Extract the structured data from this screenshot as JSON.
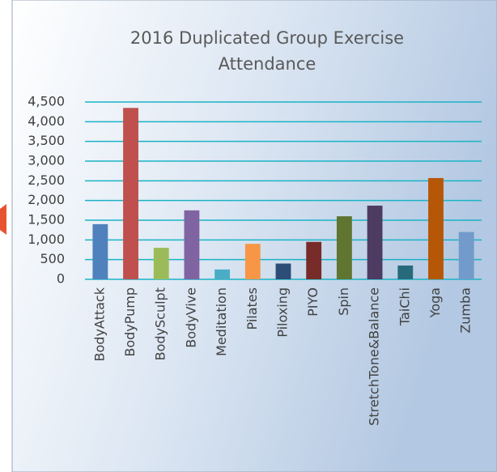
{
  "chart_data": {
    "type": "bar",
    "title": "2016 Duplicated Group Exercise Attendance",
    "categories": [
      "BodyAttack",
      "BodyPump",
      "BodySculpt",
      "BodyVive",
      "Meditation",
      "Pilates",
      "Piloxing",
      "PIYO",
      "Spin",
      "StretchTone&Balance",
      "TaiChi",
      "Yoga",
      "Zumba"
    ],
    "values": [
      1400,
      4350,
      800,
      1750,
      250,
      900,
      400,
      950,
      1600,
      1870,
      350,
      2570,
      1200
    ],
    "colors": [
      "#4f81bd",
      "#c0504d",
      "#9bbb59",
      "#8064a2",
      "#4bacc6",
      "#f79646",
      "#2c4d75",
      "#772c2a",
      "#5f7530",
      "#4d3b62",
      "#276a7c",
      "#b65708",
      "#729aca"
    ],
    "ylim": [
      0,
      4500
    ],
    "yticks": [
      0,
      500,
      {
        "value": 1000,
        "label": "1,000"
      },
      {
        "value": 1500,
        "label": "1,500"
      },
      {
        "value": 2000,
        "label": "2,000"
      },
      {
        "value": 2500,
        "label": "2,500"
      },
      {
        "value": 3000,
        "label": "3,000"
      },
      {
        "value": 3500,
        "label": "3,500"
      },
      {
        "value": 4000,
        "label": "4,000"
      },
      {
        "value": 4500,
        "label": "4,500"
      }
    ],
    "grid": true
  }
}
